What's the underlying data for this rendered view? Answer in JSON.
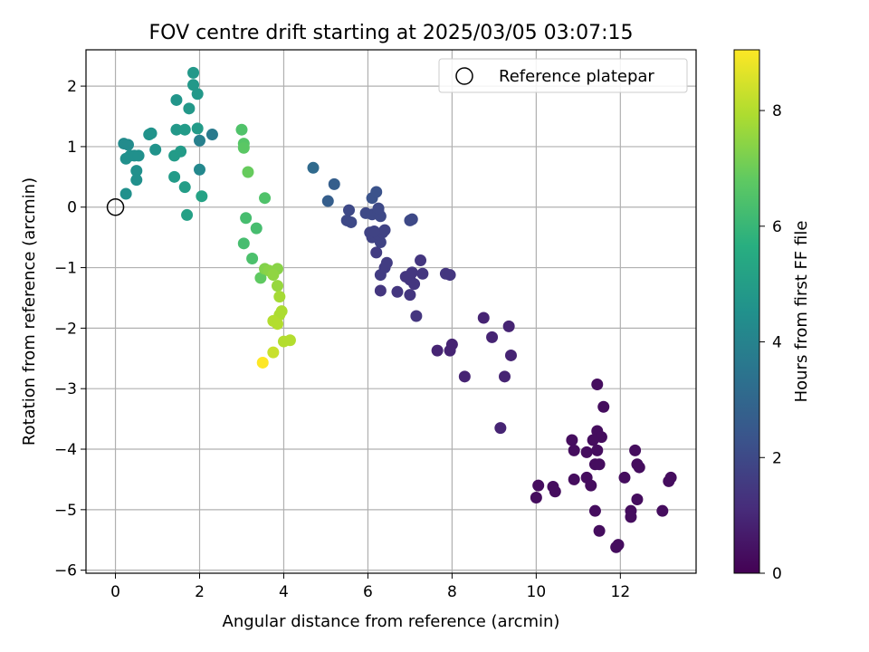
{
  "chart_data": {
    "type": "scatter",
    "title": "FOV centre drift starting at 2025/03/05 03:07:15",
    "xlabel": "Angular distance from reference (arcmin)",
    "ylabel": "Rotation from reference (arcmin)",
    "xlim": [
      -0.7,
      13.8
    ],
    "ylim": [
      -6.05,
      2.6
    ],
    "xticks": [
      0,
      2,
      4,
      6,
      8,
      10,
      12
    ],
    "yticks": [
      -6,
      -5,
      -4,
      -3,
      -2,
      -1,
      0,
      1,
      2
    ],
    "grid": true,
    "legend": {
      "position": "top-right",
      "entries": [
        "Reference platepar"
      ]
    },
    "reference": {
      "x": 0,
      "y": 0
    },
    "colorbar": {
      "label": "Hours from first FF file",
      "colormap": "viridis",
      "range": [
        0,
        9.05
      ],
      "ticks": [
        0,
        2,
        4,
        6,
        8
      ]
    },
    "points": [
      {
        "x": 11.45,
        "y": -2.93,
        "h": 0.3
      },
      {
        "x": 11.6,
        "y": -3.3,
        "h": 0.3
      },
      {
        "x": 11.45,
        "y": -3.7,
        "h": 0.3
      },
      {
        "x": 11.55,
        "y": -3.8,
        "h": 0.3
      },
      {
        "x": 11.35,
        "y": -3.85,
        "h": 0.3
      },
      {
        "x": 10.85,
        "y": -3.85,
        "h": 0.3
      },
      {
        "x": 10.9,
        "y": -4.02,
        "h": 0.3
      },
      {
        "x": 11.2,
        "y": -4.05,
        "h": 0.3
      },
      {
        "x": 11.45,
        "y": -4.02,
        "h": 0.3
      },
      {
        "x": 11.4,
        "y": -4.25,
        "h": 0.3
      },
      {
        "x": 11.5,
        "y": -4.25,
        "h": 0.3
      },
      {
        "x": 12.35,
        "y": -4.02,
        "h": 0.3
      },
      {
        "x": 12.4,
        "y": -4.25,
        "h": 0.3
      },
      {
        "x": 12.45,
        "y": -4.3,
        "h": 0.3
      },
      {
        "x": 12.1,
        "y": -4.47,
        "h": 0.3
      },
      {
        "x": 11.2,
        "y": -4.47,
        "h": 0.3
      },
      {
        "x": 10.9,
        "y": -4.5,
        "h": 0.3
      },
      {
        "x": 11.3,
        "y": -4.6,
        "h": 0.3
      },
      {
        "x": 10.05,
        "y": -4.6,
        "h": 0.3
      },
      {
        "x": 10.4,
        "y": -4.62,
        "h": 0.3
      },
      {
        "x": 10.45,
        "y": -4.7,
        "h": 0.3
      },
      {
        "x": 10.0,
        "y": -4.8,
        "h": 0.3
      },
      {
        "x": 12.4,
        "y": -4.83,
        "h": 0.3
      },
      {
        "x": 11.4,
        "y": -5.02,
        "h": 0.3
      },
      {
        "x": 12.25,
        "y": -5.02,
        "h": 0.3
      },
      {
        "x": 12.25,
        "y": -5.12,
        "h": 0.3
      },
      {
        "x": 13.2,
        "y": -4.47,
        "h": 0.3
      },
      {
        "x": 13.15,
        "y": -4.53,
        "h": 0.3
      },
      {
        "x": 13.0,
        "y": -5.02,
        "h": 0.3
      },
      {
        "x": 11.5,
        "y": -5.35,
        "h": 0.3
      },
      {
        "x": 11.95,
        "y": -5.58,
        "h": 0.3
      },
      {
        "x": 11.9,
        "y": -5.62,
        "h": 0.3
      },
      {
        "x": 9.35,
        "y": -1.97,
        "h": 0.9
      },
      {
        "x": 8.75,
        "y": -1.83,
        "h": 0.9
      },
      {
        "x": 8.95,
        "y": -2.15,
        "h": 0.9
      },
      {
        "x": 8.0,
        "y": -2.27,
        "h": 0.9
      },
      {
        "x": 7.95,
        "y": -2.37,
        "h": 0.9
      },
      {
        "x": 7.65,
        "y": -2.37,
        "h": 0.9
      },
      {
        "x": 9.4,
        "y": -2.45,
        "h": 0.9
      },
      {
        "x": 8.3,
        "y": -2.8,
        "h": 0.9
      },
      {
        "x": 9.25,
        "y": -2.8,
        "h": 0.9
      },
      {
        "x": 9.15,
        "y": -3.65,
        "h": 0.9
      },
      {
        "x": 7.15,
        "y": -1.8,
        "h": 1.4
      },
      {
        "x": 7.0,
        "y": -1.45,
        "h": 1.4
      },
      {
        "x": 6.7,
        "y": -1.4,
        "h": 1.4
      },
      {
        "x": 6.3,
        "y": -1.38,
        "h": 1.4
      },
      {
        "x": 7.1,
        "y": -1.27,
        "h": 1.4
      },
      {
        "x": 7.0,
        "y": -1.2,
        "h": 1.4
      },
      {
        "x": 6.9,
        "y": -1.15,
        "h": 1.4
      },
      {
        "x": 7.3,
        "y": -1.1,
        "h": 1.4
      },
      {
        "x": 7.05,
        "y": -1.08,
        "h": 1.4
      },
      {
        "x": 7.85,
        "y": -1.1,
        "h": 1.4
      },
      {
        "x": 7.95,
        "y": -1.12,
        "h": 1.4
      },
      {
        "x": 7.25,
        "y": -0.88,
        "h": 1.4
      },
      {
        "x": 6.3,
        "y": -1.12,
        "h": 1.6
      },
      {
        "x": 6.4,
        "y": -1.0,
        "h": 1.6
      },
      {
        "x": 6.45,
        "y": -0.92,
        "h": 1.6
      },
      {
        "x": 6.2,
        "y": -0.75,
        "h": 1.6
      },
      {
        "x": 6.3,
        "y": -0.58,
        "h": 1.8
      },
      {
        "x": 6.1,
        "y": -0.5,
        "h": 1.8
      },
      {
        "x": 6.05,
        "y": -0.42,
        "h": 1.8
      },
      {
        "x": 6.25,
        "y": -0.45,
        "h": 1.8
      },
      {
        "x": 6.35,
        "y": -0.42,
        "h": 1.8
      },
      {
        "x": 6.4,
        "y": -0.38,
        "h": 1.8
      },
      {
        "x": 6.15,
        "y": -0.4,
        "h": 1.8
      },
      {
        "x": 5.5,
        "y": -0.22,
        "h": 2.0
      },
      {
        "x": 5.6,
        "y": -0.25,
        "h": 2.0
      },
      {
        "x": 5.55,
        "y": -0.05,
        "h": 2.0
      },
      {
        "x": 5.95,
        "y": -0.1,
        "h": 2.0
      },
      {
        "x": 6.1,
        "y": -0.12,
        "h": 2.0
      },
      {
        "x": 6.25,
        "y": -0.08,
        "h": 2.0
      },
      {
        "x": 6.3,
        "y": -0.15,
        "h": 2.0
      },
      {
        "x": 6.25,
        "y": -0.02,
        "h": 2.0
      },
      {
        "x": 7.0,
        "y": -0.22,
        "h": 2.0
      },
      {
        "x": 7.05,
        "y": -0.2,
        "h": 2.0
      },
      {
        "x": 6.1,
        "y": 0.15,
        "h": 2.3
      },
      {
        "x": 6.2,
        "y": 0.25,
        "h": 2.3
      },
      {
        "x": 5.05,
        "y": 0.1,
        "h": 2.7
      },
      {
        "x": 5.2,
        "y": 0.38,
        "h": 2.7
      },
      {
        "x": 4.7,
        "y": 0.65,
        "h": 3.1
      },
      {
        "x": 2.3,
        "y": 1.2,
        "h": 3.7
      },
      {
        "x": 2.0,
        "y": 1.1,
        "h": 3.9
      },
      {
        "x": 2.0,
        "y": 0.62,
        "h": 4.2
      },
      {
        "x": 0.2,
        "y": 1.05,
        "h": 4.3
      },
      {
        "x": 0.3,
        "y": 1.03,
        "h": 4.3
      },
      {
        "x": 0.25,
        "y": 0.8,
        "h": 4.5
      },
      {
        "x": 0.35,
        "y": 0.85,
        "h": 4.5
      },
      {
        "x": 0.45,
        "y": 0.85,
        "h": 4.5
      },
      {
        "x": 0.55,
        "y": 0.85,
        "h": 4.5
      },
      {
        "x": 0.5,
        "y": 0.6,
        "h": 4.5
      },
      {
        "x": 0.5,
        "y": 0.45,
        "h": 4.5
      },
      {
        "x": 0.25,
        "y": 0.22,
        "h": 4.5
      },
      {
        "x": 0.8,
        "y": 1.2,
        "h": 4.6
      },
      {
        "x": 0.85,
        "y": 1.22,
        "h": 4.6
      },
      {
        "x": 0.95,
        "y": 0.95,
        "h": 4.6
      },
      {
        "x": 1.45,
        "y": 1.77,
        "h": 4.7
      },
      {
        "x": 1.85,
        "y": 2.22,
        "h": 4.8
      },
      {
        "x": 1.85,
        "y": 2.02,
        "h": 4.8
      },
      {
        "x": 1.95,
        "y": 1.87,
        "h": 4.8
      },
      {
        "x": 1.75,
        "y": 1.63,
        "h": 4.8
      },
      {
        "x": 1.45,
        "y": 1.28,
        "h": 4.8
      },
      {
        "x": 1.65,
        "y": 1.28,
        "h": 4.9
      },
      {
        "x": 1.95,
        "y": 1.3,
        "h": 4.9
      },
      {
        "x": 1.4,
        "y": 0.85,
        "h": 4.9
      },
      {
        "x": 1.55,
        "y": 0.92,
        "h": 4.9
      },
      {
        "x": 1.4,
        "y": 0.5,
        "h": 4.9
      },
      {
        "x": 1.65,
        "y": 0.33,
        "h": 5.0
      },
      {
        "x": 2.05,
        "y": 0.18,
        "h": 5.2
      },
      {
        "x": 1.7,
        "y": -0.13,
        "h": 5.1
      },
      {
        "x": 3.0,
        "y": 1.28,
        "h": 6.5
      },
      {
        "x": 3.05,
        "y": 1.05,
        "h": 6.6
      },
      {
        "x": 3.05,
        "y": 0.98,
        "h": 6.7
      },
      {
        "x": 3.15,
        "y": 0.58,
        "h": 6.9
      },
      {
        "x": 3.55,
        "y": 0.15,
        "h": 6.5
      },
      {
        "x": 3.1,
        "y": -0.18,
        "h": 6.3
      },
      {
        "x": 3.35,
        "y": -0.35,
        "h": 6.3
      },
      {
        "x": 3.05,
        "y": -0.6,
        "h": 6.3
      },
      {
        "x": 3.25,
        "y": -0.85,
        "h": 6.4
      },
      {
        "x": 3.45,
        "y": -1.17,
        "h": 6.8
      },
      {
        "x": 3.55,
        "y": -1.02,
        "h": 7.3
      },
      {
        "x": 3.65,
        "y": -1.05,
        "h": 7.4
      },
      {
        "x": 3.85,
        "y": -1.02,
        "h": 7.4
      },
      {
        "x": 3.75,
        "y": -1.12,
        "h": 7.5
      },
      {
        "x": 3.85,
        "y": -1.3,
        "h": 7.6
      },
      {
        "x": 3.9,
        "y": -1.48,
        "h": 7.8
      },
      {
        "x": 3.95,
        "y": -1.72,
        "h": 7.9
      },
      {
        "x": 3.9,
        "y": -1.78,
        "h": 7.9
      },
      {
        "x": 3.75,
        "y": -1.88,
        "h": 8.0
      },
      {
        "x": 3.85,
        "y": -1.93,
        "h": 8.0
      },
      {
        "x": 4.0,
        "y": -2.22,
        "h": 8.0
      },
      {
        "x": 4.15,
        "y": -2.2,
        "h": 8.0
      },
      {
        "x": 3.75,
        "y": -2.4,
        "h": 8.3
      },
      {
        "x": 3.5,
        "y": -2.57,
        "h": 9.05
      }
    ]
  }
}
